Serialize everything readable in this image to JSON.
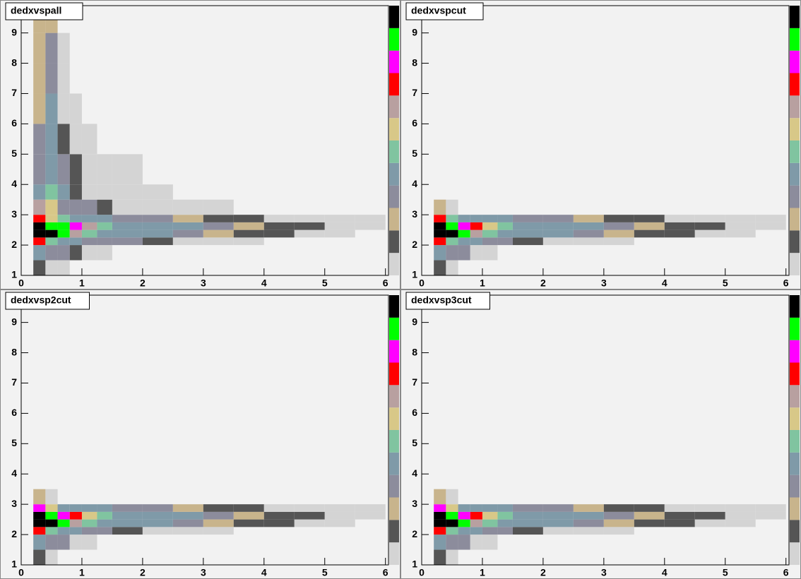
{
  "chart_data": [
    {
      "type": "hist2d",
      "title": "dedxvspall",
      "xlim": [
        0,
        6.05
      ],
      "ylim": [
        1,
        9.9
      ],
      "xticks": [
        0,
        1,
        2,
        3,
        4,
        5,
        6
      ],
      "yticks": [
        1,
        2,
        3,
        4,
        5,
        6,
        7,
        8,
        9
      ],
      "x_edges": [
        0.2,
        0.4,
        0.6,
        0.8,
        1,
        1.25,
        1.5,
        2,
        2.5,
        3,
        3.5,
        4,
        4.5,
        5,
        5.5,
        6
      ],
      "y_edges": [
        1,
        1.5,
        2,
        2.25,
        2.5,
        2.75,
        3,
        3.5,
        4,
        5,
        6,
        7,
        8,
        9,
        9.8
      ],
      "colors": [
        "#d4d4d4",
        "#555555",
        "#c8b48c",
        "#8c8c9c",
        "#7f9aa8",
        "#80c4a0",
        "#d8c888",
        "#b8a0a0",
        "#ff0000",
        "#ff00ff",
        "#00ff00",
        "#000000"
      ],
      "z": [
        [
          2,
          1,
          1,
          0,
          0,
          0,
          0,
          0,
          0,
          0,
          0,
          0,
          0,
          0,
          0
        ],
        [
          5,
          4,
          4,
          2,
          1,
          1,
          0,
          0,
          0,
          0,
          0,
          0,
          0,
          0,
          0
        ],
        [
          9,
          6,
          5,
          5,
          4,
          4,
          4,
          2,
          1,
          1,
          1,
          0,
          0,
          0,
          0
        ],
        [
          12,
          12,
          11,
          8,
          6,
          5,
          5,
          5,
          4,
          3,
          2,
          2,
          1,
          1,
          0
        ],
        [
          12,
          11,
          11,
          10,
          8,
          6,
          5,
          5,
          5,
          4,
          3,
          2,
          2,
          1,
          1
        ],
        [
          9,
          7,
          6,
          5,
          5,
          5,
          4,
          4,
          3,
          2,
          2,
          1,
          1,
          1,
          1
        ],
        [
          8,
          7,
          4,
          4,
          4,
          2,
          1,
          1,
          1,
          1,
          0,
          0,
          0,
          0,
          0
        ],
        [
          5,
          6,
          5,
          2,
          1,
          1,
          1,
          1,
          0,
          0,
          0,
          0,
          0,
          0,
          0
        ],
        [
          4,
          5,
          4,
          2,
          1,
          1,
          1,
          0,
          0,
          0,
          0,
          0,
          0,
          0,
          0
        ],
        [
          4,
          5,
          2,
          1,
          1,
          0,
          0,
          0,
          0,
          0,
          0,
          0,
          0,
          0,
          0
        ],
        [
          3,
          5,
          1,
          1,
          0,
          0,
          0,
          0,
          0,
          0,
          0,
          0,
          0,
          0,
          0
        ],
        [
          3,
          4,
          1,
          0,
          0,
          0,
          0,
          0,
          0,
          0,
          0,
          0,
          0,
          0,
          0
        ],
        [
          3,
          4,
          1,
          0,
          0,
          0,
          0,
          0,
          0,
          0,
          0,
          0,
          0,
          0,
          0
        ],
        [
          3,
          3,
          0,
          0,
          0,
          0,
          0,
          0,
          0,
          0,
          0,
          0,
          0,
          0,
          0
        ]
      ]
    },
    {
      "type": "hist2d",
      "title": "dedxvspcut",
      "xlim": [
        0,
        6.05
      ],
      "ylim": [
        1,
        9.9
      ],
      "xticks": [
        0,
        1,
        2,
        3,
        4,
        5,
        6
      ],
      "yticks": [
        1,
        2,
        3,
        4,
        5,
        6,
        7,
        8,
        9
      ],
      "x_edges": [
        0.2,
        0.4,
        0.6,
        0.8,
        1,
        1.25,
        1.5,
        2,
        2.5,
        3,
        3.5,
        4,
        4.5,
        5,
        5.5,
        6
      ],
      "y_edges": [
        1,
        1.5,
        2,
        2.25,
        2.5,
        2.75,
        3,
        3.5,
        4,
        5,
        6,
        7,
        8,
        9,
        9.8
      ],
      "colors": [
        "#d4d4d4",
        "#555555",
        "#c8b48c",
        "#8c8c9c",
        "#7f9aa8",
        "#80c4a0",
        "#d8c888",
        "#b8a0a0",
        "#ff0000",
        "#ff00ff",
        "#00ff00",
        "#000000"
      ],
      "z": [
        [
          2,
          1,
          0,
          0,
          0,
          0,
          0,
          0,
          0,
          0,
          0,
          0,
          0,
          0,
          0
        ],
        [
          5,
          4,
          4,
          1,
          1,
          0,
          0,
          0,
          0,
          0,
          0,
          0,
          0,
          0,
          0
        ],
        [
          9,
          6,
          5,
          5,
          4,
          4,
          2,
          1,
          1,
          1,
          0,
          0,
          0,
          0,
          0
        ],
        [
          12,
          12,
          11,
          8,
          6,
          5,
          5,
          5,
          4,
          3,
          2,
          2,
          1,
          1,
          0
        ],
        [
          12,
          11,
          10,
          9,
          7,
          6,
          5,
          5,
          5,
          4,
          3,
          2,
          2,
          1,
          1
        ],
        [
          9,
          6,
          5,
          5,
          5,
          5,
          4,
          4,
          3,
          2,
          2,
          1,
          1,
          1,
          1
        ],
        [
          3,
          1,
          0,
          0,
          0,
          0,
          0,
          0,
          0,
          0,
          0,
          0,
          0,
          0,
          0
        ],
        [
          0,
          0,
          0,
          0,
          0,
          0,
          0,
          0,
          0,
          0,
          0,
          0,
          0,
          0,
          0
        ],
        [
          0,
          0,
          0,
          0,
          0,
          0,
          0,
          0,
          0,
          0,
          0,
          0,
          0,
          0,
          0
        ],
        [
          0,
          0,
          0,
          0,
          0,
          0,
          0,
          0,
          0,
          0,
          0,
          0,
          0,
          0,
          0
        ],
        [
          0,
          0,
          0,
          0,
          0,
          0,
          0,
          0,
          0,
          0,
          0,
          0,
          0,
          0,
          0
        ],
        [
          0,
          0,
          0,
          0,
          0,
          0,
          0,
          0,
          0,
          0,
          0,
          0,
          0,
          0,
          0
        ],
        [
          0,
          0,
          0,
          0,
          0,
          0,
          0,
          0,
          0,
          0,
          0,
          0,
          0,
          0,
          0
        ],
        [
          0,
          0,
          0,
          0,
          0,
          0,
          0,
          0,
          0,
          0,
          0,
          0,
          0,
          0,
          0
        ]
      ]
    },
    {
      "type": "hist2d",
      "title": "dedxvsp2cut",
      "xlim": [
        0,
        6.05
      ],
      "ylim": [
        1,
        9.9
      ],
      "xticks": [
        0,
        1,
        2,
        3,
        4,
        5,
        6
      ],
      "yticks": [
        1,
        2,
        3,
        4,
        5,
        6,
        7,
        8,
        9
      ],
      "x_edges": [
        0.2,
        0.4,
        0.6,
        0.8,
        1,
        1.25,
        1.5,
        2,
        2.5,
        3,
        3.5,
        4,
        4.5,
        5,
        5.5,
        6
      ],
      "y_edges": [
        1,
        1.5,
        2,
        2.25,
        2.5,
        2.75,
        3,
        3.5,
        4,
        5,
        6,
        7,
        8,
        9,
        9.8
      ],
      "colors": [
        "#d4d4d4",
        "#555555",
        "#c8b48c",
        "#8c8c9c",
        "#7f9aa8",
        "#80c4a0",
        "#d8c888",
        "#b8a0a0",
        "#ff0000",
        "#ff00ff",
        "#00ff00",
        "#000000"
      ],
      "z": [
        [
          2,
          1,
          0,
          0,
          0,
          0,
          0,
          0,
          0,
          0,
          0,
          0,
          0,
          0,
          0
        ],
        [
          5,
          4,
          4,
          1,
          1,
          0,
          0,
          0,
          0,
          0,
          0,
          0,
          0,
          0,
          0
        ],
        [
          9,
          6,
          5,
          5,
          4,
          4,
          2,
          1,
          1,
          1,
          0,
          0,
          0,
          0,
          0
        ],
        [
          12,
          12,
          11,
          8,
          6,
          5,
          5,
          5,
          4,
          3,
          2,
          2,
          1,
          1,
          0
        ],
        [
          12,
          11,
          10,
          9,
          7,
          6,
          5,
          5,
          5,
          4,
          3,
          2,
          2,
          1,
          1
        ],
        [
          10,
          7,
          5,
          5,
          5,
          5,
          4,
          4,
          3,
          2,
          2,
          1,
          1,
          1,
          1
        ],
        [
          3,
          1,
          0,
          0,
          0,
          0,
          0,
          0,
          0,
          0,
          0,
          0,
          0,
          0,
          0
        ],
        [
          0,
          0,
          0,
          0,
          0,
          0,
          0,
          0,
          0,
          0,
          0,
          0,
          0,
          0,
          0
        ],
        [
          0,
          0,
          0,
          0,
          0,
          0,
          0,
          0,
          0,
          0,
          0,
          0,
          0,
          0,
          0
        ],
        [
          0,
          0,
          0,
          0,
          0,
          0,
          0,
          0,
          0,
          0,
          0,
          0,
          0,
          0,
          0
        ],
        [
          0,
          0,
          0,
          0,
          0,
          0,
          0,
          0,
          0,
          0,
          0,
          0,
          0,
          0,
          0
        ],
        [
          0,
          0,
          0,
          0,
          0,
          0,
          0,
          0,
          0,
          0,
          0,
          0,
          0,
          0,
          0
        ],
        [
          0,
          0,
          0,
          0,
          0,
          0,
          0,
          0,
          0,
          0,
          0,
          0,
          0,
          0,
          0
        ],
        [
          0,
          0,
          0,
          0,
          0,
          0,
          0,
          0,
          0,
          0,
          0,
          0,
          0,
          0,
          0
        ]
      ]
    },
    {
      "type": "hist2d",
      "title": "dedxvsp3cut",
      "xlim": [
        0,
        6.05
      ],
      "ylim": [
        1,
        9.9
      ],
      "xticks": [
        0,
        1,
        2,
        3,
        4,
        5,
        6
      ],
      "yticks": [
        1,
        2,
        3,
        4,
        5,
        6,
        7,
        8,
        9
      ],
      "x_edges": [
        0.2,
        0.4,
        0.6,
        0.8,
        1,
        1.25,
        1.5,
        2,
        2.5,
        3,
        3.5,
        4,
        4.5,
        5,
        5.5,
        6
      ],
      "y_edges": [
        1,
        1.5,
        2,
        2.25,
        2.5,
        2.75,
        3,
        3.5,
        4,
        5,
        6,
        7,
        8,
        9,
        9.8
      ],
      "colors": [
        "#d4d4d4",
        "#555555",
        "#c8b48c",
        "#8c8c9c",
        "#7f9aa8",
        "#80c4a0",
        "#d8c888",
        "#b8a0a0",
        "#ff0000",
        "#ff00ff",
        "#00ff00",
        "#000000"
      ],
      "z": [
        [
          2,
          1,
          0,
          0,
          0,
          0,
          0,
          0,
          0,
          0,
          0,
          0,
          0,
          0,
          0
        ],
        [
          5,
          4,
          4,
          1,
          1,
          0,
          0,
          0,
          0,
          0,
          0,
          0,
          0,
          0,
          0
        ],
        [
          9,
          6,
          5,
          5,
          4,
          4,
          2,
          1,
          1,
          1,
          0,
          0,
          0,
          0,
          0
        ],
        [
          12,
          12,
          11,
          8,
          6,
          5,
          5,
          5,
          4,
          3,
          2,
          2,
          1,
          1,
          0
        ],
        [
          12,
          11,
          10,
          9,
          7,
          6,
          5,
          5,
          5,
          4,
          3,
          2,
          2,
          1,
          1
        ],
        [
          10,
          7,
          5,
          5,
          5,
          5,
          4,
          4,
          3,
          2,
          2,
          1,
          1,
          1,
          1
        ],
        [
          3,
          1,
          0,
          0,
          0,
          0,
          0,
          0,
          0,
          0,
          0,
          0,
          0,
          0,
          0
        ],
        [
          0,
          0,
          0,
          0,
          0,
          0,
          0,
          0,
          0,
          0,
          0,
          0,
          0,
          0,
          0
        ],
        [
          0,
          0,
          0,
          0,
          0,
          0,
          0,
          0,
          0,
          0,
          0,
          0,
          0,
          0,
          0
        ],
        [
          0,
          0,
          0,
          0,
          0,
          0,
          0,
          0,
          0,
          0,
          0,
          0,
          0,
          0,
          0
        ],
        [
          0,
          0,
          0,
          0,
          0,
          0,
          0,
          0,
          0,
          0,
          0,
          0,
          0,
          0,
          0
        ],
        [
          0,
          0,
          0,
          0,
          0,
          0,
          0,
          0,
          0,
          0,
          0,
          0,
          0,
          0,
          0
        ],
        [
          0,
          0,
          0,
          0,
          0,
          0,
          0,
          0,
          0,
          0,
          0,
          0,
          0,
          0,
          0
        ],
        [
          0,
          0,
          0,
          0,
          0,
          0,
          0,
          0,
          0,
          0,
          0,
          0,
          0,
          0,
          0
        ]
      ]
    }
  ]
}
